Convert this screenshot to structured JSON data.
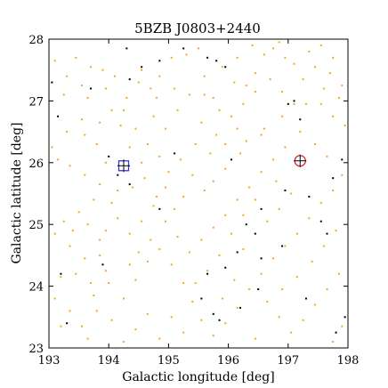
{
  "chart_data": {
    "type": "scatter",
    "title": "5BZB J0803+2440",
    "xlabel": "Galactic longitude [deg]",
    "ylabel": "Galactic latitude [deg]",
    "xlim": [
      193,
      198
    ],
    "ylim": [
      23,
      28
    ],
    "xticks": [
      "193",
      "194",
      "195",
      "196",
      "197",
      "198"
    ],
    "yticks": [
      "23",
      "24",
      "25",
      "26",
      "27",
      "28"
    ],
    "grid": false,
    "colors": {
      "orange": "#f5a623",
      "black": "#000000",
      "blue": "#3a36d8",
      "red": "#d62020"
    },
    "series": [
      {
        "marker": "dot",
        "color": "orange",
        "points": [
          [
            193.1,
            27.65
          ],
          [
            193.45,
            27.7
          ],
          [
            193.7,
            27.55
          ],
          [
            193.55,
            27.25
          ],
          [
            193.65,
            27.05
          ],
          [
            193.25,
            27.1
          ],
          [
            193.9,
            27.5
          ],
          [
            194.1,
            27.4
          ],
          [
            193.95,
            27.2
          ],
          [
            194.25,
            26.85
          ],
          [
            194.2,
            26.6
          ],
          [
            194.7,
            27.2
          ],
          [
            194.8,
            27.05
          ],
          [
            194.55,
            27.5
          ],
          [
            195.05,
            27.7
          ],
          [
            195.3,
            27.75
          ],
          [
            195.5,
            27.85
          ],
          [
            195.6,
            27.4
          ],
          [
            195.75,
            27.05
          ],
          [
            195.85,
            26.85
          ],
          [
            196.1,
            27.3
          ],
          [
            196.3,
            27.25
          ],
          [
            196.45,
            27.45
          ],
          [
            196.6,
            27.75
          ],
          [
            196.75,
            27.85
          ],
          [
            196.95,
            27.7
          ],
          [
            197.35,
            27.8
          ],
          [
            197.55,
            27.9
          ],
          [
            197.75,
            27.7
          ],
          [
            197.6,
            27.2
          ],
          [
            197.85,
            27.05
          ],
          [
            197.3,
            26.95
          ],
          [
            196.9,
            26.75
          ],
          [
            196.6,
            26.55
          ],
          [
            196.3,
            26.35
          ],
          [
            196.15,
            26.55
          ],
          [
            195.95,
            26.3
          ],
          [
            195.7,
            26.15
          ],
          [
            195.45,
            26.3
          ],
          [
            195.2,
            26.05
          ],
          [
            195.0,
            25.85
          ],
          [
            194.85,
            26.1
          ],
          [
            194.65,
            26.3
          ],
          [
            194.45,
            26.55
          ],
          [
            194.55,
            26.0
          ],
          [
            194.6,
            25.75
          ],
          [
            194.4,
            25.6
          ],
          [
            194.15,
            25.55
          ],
          [
            193.85,
            25.65
          ],
          [
            193.6,
            25.8
          ],
          [
            193.35,
            25.95
          ],
          [
            193.15,
            26.05
          ],
          [
            193.05,
            26.25
          ],
          [
            193.3,
            26.5
          ],
          [
            193.55,
            26.7
          ],
          [
            193.8,
            26.3
          ],
          [
            193.95,
            26.0
          ],
          [
            193.75,
            25.4
          ],
          [
            193.5,
            25.2
          ],
          [
            193.25,
            25.05
          ],
          [
            193.1,
            24.85
          ],
          [
            193.35,
            24.65
          ],
          [
            193.6,
            24.45
          ],
          [
            193.85,
            24.5
          ],
          [
            193.95,
            24.25
          ],
          [
            193.7,
            24.05
          ],
          [
            193.45,
            24.2
          ],
          [
            193.2,
            24.15
          ],
          [
            193.1,
            23.8
          ],
          [
            193.35,
            23.6
          ],
          [
            193.55,
            23.35
          ],
          [
            193.8,
            23.6
          ],
          [
            194.05,
            23.45
          ],
          [
            194.25,
            23.8
          ],
          [
            194.45,
            24.1
          ],
          [
            194.65,
            24.4
          ],
          [
            194.85,
            24.6
          ],
          [
            195.05,
            24.35
          ],
          [
            195.25,
            24.05
          ],
          [
            195.4,
            23.75
          ],
          [
            195.55,
            23.45
          ],
          [
            195.75,
            23.2
          ],
          [
            195.95,
            23.4
          ],
          [
            196.15,
            23.65
          ],
          [
            196.35,
            23.95
          ],
          [
            196.55,
            24.2
          ],
          [
            196.75,
            24.45
          ],
          [
            196.95,
            24.65
          ],
          [
            197.15,
            24.85
          ],
          [
            197.35,
            25.1
          ],
          [
            197.55,
            25.35
          ],
          [
            197.75,
            25.55
          ],
          [
            197.9,
            25.8
          ],
          [
            197.65,
            26.1
          ],
          [
            197.45,
            26.3
          ],
          [
            197.2,
            26.5
          ],
          [
            196.95,
            26.25
          ],
          [
            196.75,
            26.05
          ],
          [
            196.55,
            25.85
          ],
          [
            196.35,
            25.6
          ],
          [
            196.15,
            25.4
          ],
          [
            195.95,
            25.15
          ],
          [
            195.75,
            24.95
          ],
          [
            195.55,
            24.75
          ],
          [
            195.35,
            24.55
          ],
          [
            195.15,
            24.8
          ],
          [
            194.95,
            25.05
          ],
          [
            194.75,
            25.3
          ],
          [
            194.55,
            25.05
          ],
          [
            194.35,
            24.85
          ],
          [
            194.15,
            25.1
          ],
          [
            193.95,
            24.9
          ],
          [
            197.85,
            24.2
          ],
          [
            197.65,
            23.95
          ],
          [
            197.45,
            23.7
          ],
          [
            197.25,
            23.45
          ],
          [
            197.05,
            23.25
          ],
          [
            196.85,
            23.5
          ],
          [
            196.65,
            23.75
          ],
          [
            197.9,
            23.35
          ],
          [
            197.75,
            23.1
          ],
          [
            196.45,
            23.15
          ],
          [
            196.25,
            24.6
          ],
          [
            196.05,
            24.85
          ],
          [
            195.85,
            24.5
          ],
          [
            195.65,
            24.25
          ],
          [
            195.45,
            24.05
          ],
          [
            195.25,
            23.25
          ],
          [
            195.05,
            23.5
          ],
          [
            194.85,
            23.15
          ],
          [
            194.65,
            23.55
          ],
          [
            194.45,
            23.3
          ],
          [
            194.25,
            23.1
          ],
          [
            193.65,
            23.15
          ],
          [
            193.85,
            24.75
          ],
          [
            194.05,
            25.35
          ],
          [
            194.35,
            26.25
          ],
          [
            194.75,
            26.75
          ],
          [
            194.95,
            26.55
          ],
          [
            195.15,
            26.85
          ],
          [
            195.35,
            27.1
          ],
          [
            195.55,
            26.65
          ],
          [
            195.8,
            26.45
          ],
          [
            196.05,
            26.75
          ],
          [
            196.25,
            26.95
          ],
          [
            196.45,
            27.15
          ],
          [
            196.7,
            27.35
          ],
          [
            196.9,
            27.15
          ],
          [
            197.1,
            26.95
          ],
          [
            197.25,
            27.35
          ],
          [
            197.45,
            27.55
          ],
          [
            197.7,
            27.45
          ],
          [
            197.9,
            27.25
          ],
          [
            197.95,
            26.6
          ],
          [
            197.75,
            26.75
          ],
          [
            197.55,
            26.95
          ],
          [
            196.85,
            25.25
          ],
          [
            196.65,
            25.05
          ],
          [
            196.45,
            25.4
          ],
          [
            196.25,
            25.15
          ],
          [
            195.6,
            25.55
          ],
          [
            195.4,
            25.8
          ],
          [
            195.25,
            25.45
          ],
          [
            194.95,
            25.6
          ],
          [
            194.7,
            24.75
          ],
          [
            194.5,
            24.55
          ],
          [
            193.3,
            27.4
          ],
          [
            193.6,
            26.45
          ],
          [
            193.85,
            26.65
          ],
          [
            194.05,
            26.85
          ],
          [
            194.3,
            27.05
          ],
          [
            194.5,
            27.3
          ],
          [
            194.85,
            27.4
          ],
          [
            195.1,
            27.2
          ],
          [
            195.6,
            27.1
          ],
          [
            195.9,
            27.55
          ],
          [
            196.15,
            27.7
          ],
          [
            196.4,
            27.9
          ],
          [
            196.85,
            27.95
          ],
          [
            197.1,
            27.6
          ],
          [
            193.2,
            23.35
          ],
          [
            193.75,
            23.85
          ],
          [
            194.0,
            24.05
          ],
          [
            194.35,
            24.35
          ],
          [
            195.9,
            23.8
          ],
          [
            196.1,
            24.1
          ],
          [
            196.9,
            23.95
          ],
          [
            197.15,
            24.15
          ],
          [
            197.4,
            24.4
          ],
          [
            197.6,
            24.65
          ],
          [
            197.8,
            24.9
          ],
          [
            197.05,
            25.5
          ],
          [
            196.8,
            25.7
          ],
          [
            196.55,
            26.45
          ],
          [
            196.2,
            26.15
          ],
          [
            195.95,
            25.9
          ],
          [
            195.75,
            25.7
          ],
          [
            195.1,
            25.25
          ],
          [
            194.8,
            25.45
          ],
          [
            193.4,
            24.9
          ],
          [
            193.65,
            25.0
          ]
        ]
      },
      {
        "marker": "dot",
        "color": "black",
        "points": [
          [
            193.05,
            27.3
          ],
          [
            193.7,
            27.2
          ],
          [
            194.3,
            27.85
          ],
          [
            194.55,
            27.55
          ],
          [
            194.85,
            27.65
          ],
          [
            195.25,
            27.85
          ],
          [
            195.65,
            27.7
          ],
          [
            195.8,
            27.65
          ],
          [
            195.95,
            27.55
          ],
          [
            194.35,
            27.35
          ],
          [
            193.15,
            26.75
          ],
          [
            194.0,
            26.1
          ],
          [
            194.15,
            25.8
          ],
          [
            194.35,
            25.65
          ],
          [
            195.1,
            26.15
          ],
          [
            196.05,
            26.05
          ],
          [
            196.95,
            25.55
          ],
          [
            196.55,
            25.25
          ],
          [
            196.3,
            25.0
          ],
          [
            196.45,
            24.85
          ],
          [
            196.55,
            24.45
          ],
          [
            196.15,
            24.55
          ],
          [
            195.95,
            24.3
          ],
          [
            195.65,
            24.2
          ],
          [
            195.75,
            23.55
          ],
          [
            195.55,
            23.8
          ],
          [
            195.85,
            23.45
          ],
          [
            196.2,
            23.65
          ],
          [
            196.5,
            23.95
          ],
          [
            197.3,
            23.8
          ],
          [
            197.95,
            23.5
          ],
          [
            197.8,
            23.25
          ],
          [
            197.65,
            24.85
          ],
          [
            197.55,
            25.05
          ],
          [
            197.35,
            25.45
          ],
          [
            197.75,
            25.75
          ],
          [
            197.9,
            26.05
          ],
          [
            197.2,
            26.7
          ],
          [
            197.0,
            26.95
          ],
          [
            197.1,
            27.0
          ],
          [
            193.3,
            23.4
          ],
          [
            193.2,
            24.2
          ],
          [
            193.9,
            24.35
          ],
          [
            194.85,
            25.25
          ],
          [
            196.9,
            24.65
          ]
        ]
      },
      {
        "marker": "square",
        "color": "blue",
        "points": [
          [
            194.25,
            25.95
          ]
        ]
      },
      {
        "marker": "circle",
        "color": "red",
        "points": [
          [
            197.2,
            26.03
          ]
        ]
      },
      {
        "marker": "cross",
        "color": "black",
        "points": [
          [
            194.25,
            25.95
          ],
          [
            197.2,
            26.03
          ]
        ]
      }
    ]
  }
}
